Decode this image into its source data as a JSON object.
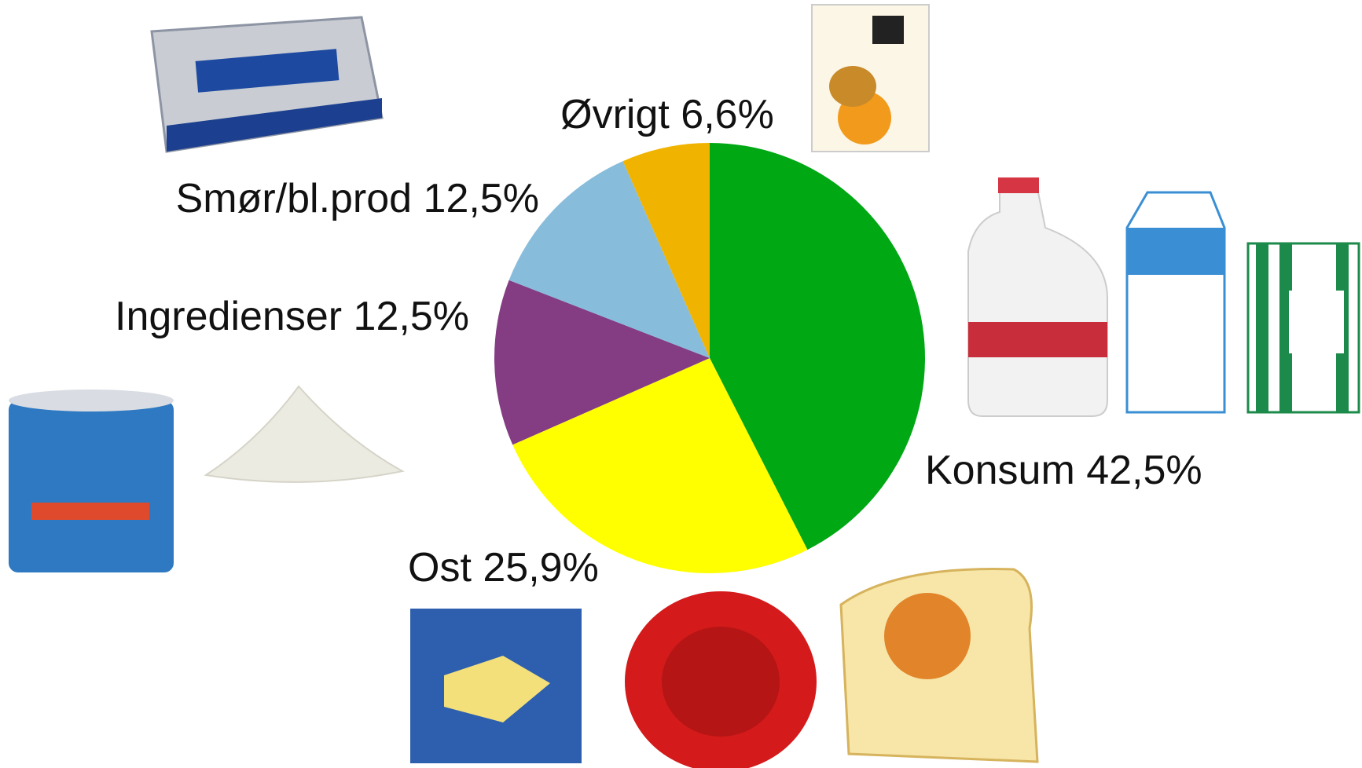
{
  "chart_data": {
    "type": "pie",
    "categories": [
      "Konsum",
      "Ost",
      "Ingredienser",
      "Smør/bl.prod",
      "Øvrigt"
    ],
    "values": [
      42.5,
      25.9,
      12.5,
      12.5,
      6.6
    ],
    "value_labels": [
      "42,5%",
      "25,9%",
      "12,5%",
      "12,5%",
      "6,6%"
    ],
    "colors": [
      "#00a814",
      "#ffff00",
      "#843c83",
      "#88bcdb",
      "#f0b400"
    ]
  }
}
